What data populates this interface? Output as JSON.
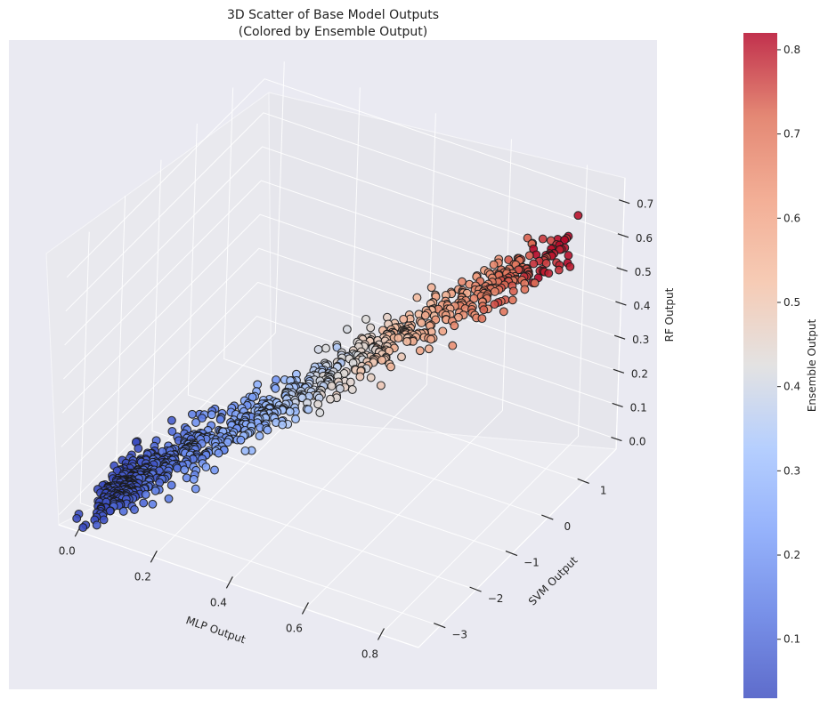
{
  "chart_data": {
    "type": "scatter",
    "title": "3D Scatter of Base Model Outputs",
    "subtitle": "(Colored by Ensemble Output)",
    "xlabel": "MLP Output",
    "ylabel": "SVM Output",
    "zlabel": "RF Output",
    "colorbar_label": "Ensemble Output",
    "x_ticks": [
      "0.0",
      "0.2",
      "0.4",
      "0.6",
      "0.8"
    ],
    "y_ticks": [
      "−3",
      "−2",
      "−1",
      "0",
      "1"
    ],
    "z_ticks": [
      "0.0",
      "0.1",
      "0.2",
      "0.3",
      "0.4",
      "0.5",
      "0.6",
      "0.7"
    ],
    "colorbar_ticks": [
      "0.1",
      "0.2",
      "0.3",
      "0.4",
      "0.5",
      "0.6",
      "0.7",
      "0.8"
    ],
    "xlim": [
      -0.05,
      0.9
    ],
    "ylim": [
      -3.6,
      1.9
    ],
    "zlim": [
      -0.03,
      0.77
    ],
    "color_range": [
      0.03,
      0.82
    ],
    "colormap": "coolwarm",
    "grid": true,
    "point_count": 1000,
    "sampling": "approximate cloud: x = MLP output in [0.02, 0.88]; y = SVM output about -3 + 4*x; z = RF output about 0.8*x; color = ensemble output about 0.93*x",
    "pane_color": "#eaeaf2"
  }
}
